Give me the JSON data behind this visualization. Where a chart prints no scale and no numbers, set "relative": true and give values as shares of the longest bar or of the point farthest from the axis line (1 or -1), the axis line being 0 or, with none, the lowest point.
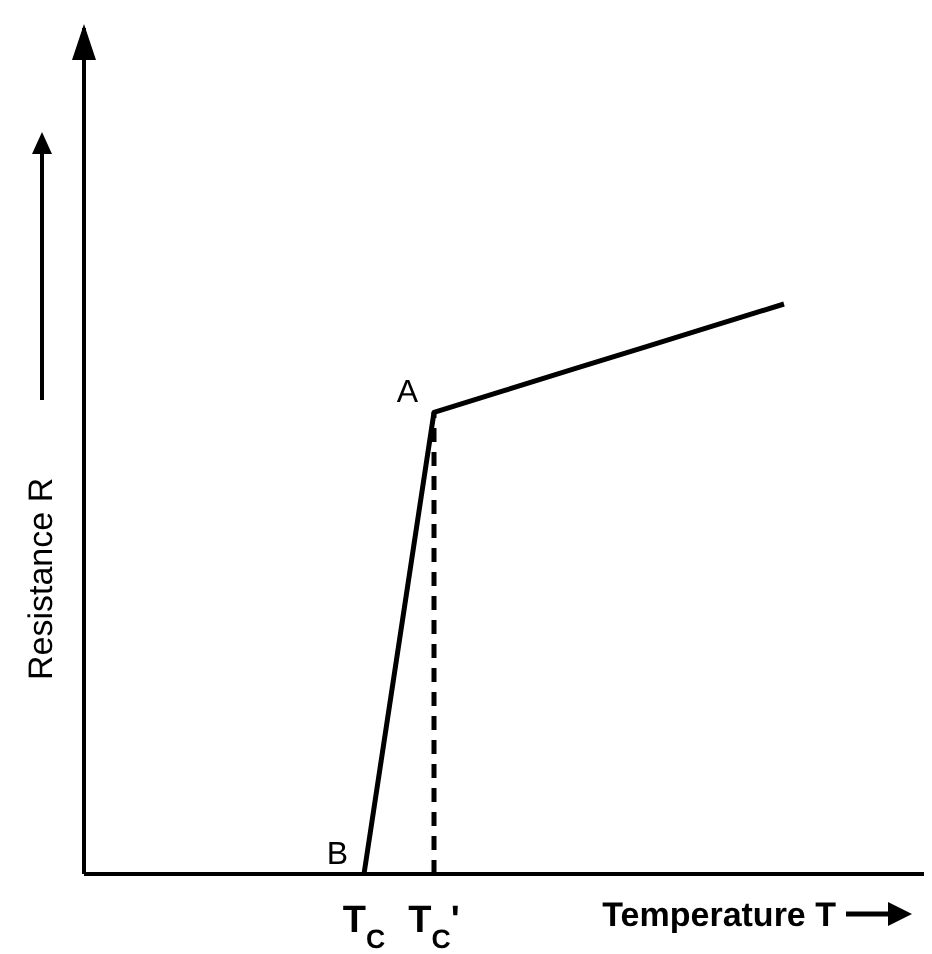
{
  "chart_data": {
    "type": "line",
    "relative": true,
    "xlabel": "Temperature T",
    "ylabel": "Resistance R",
    "categories": [
      null,
      null,
      null,
      null,
      "T$_{C}$",
      "T$_{C}$'",
      null,
      null,
      null,
      null,
      null,
      null,
      null
    ],
    "series": [
      {
        "color": "#000000",
        "values": [
          null,
          null,
          null,
          null,
          0,
          0.81,
          0.848,
          0.886,
          0.924,
          0.962,
          1,
          null,
          null
        ]
      }
    ],
    "ref_lines": [
      {
        "axis": "x",
        "value": "T$_{C}$'",
        "line_style": "dashed",
        "color": "#000000"
      }
    ],
    "annotations": [
      {
        "text": "A",
        "x": "T$_{C}$'",
        "y": 0.81
      },
      {
        "text": "B",
        "x": "T$_{C}$",
        "y": 0
      }
    ]
  }
}
